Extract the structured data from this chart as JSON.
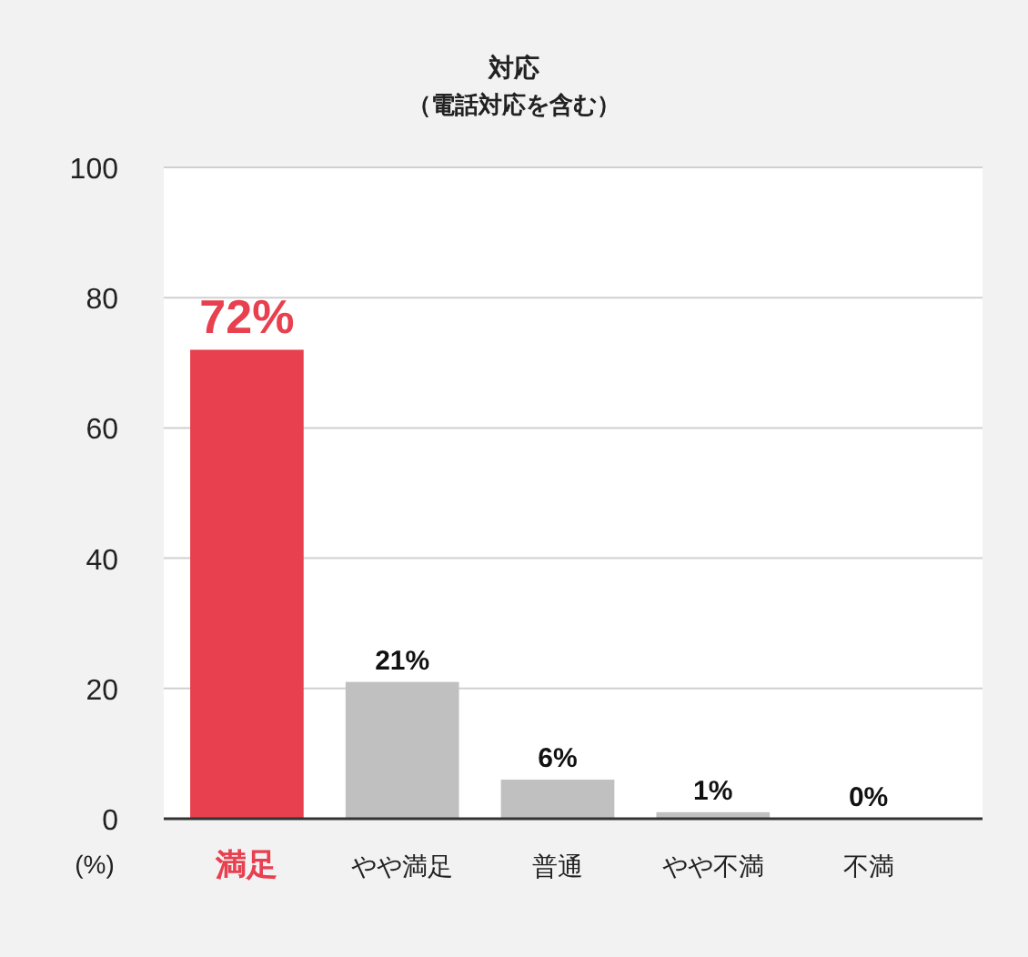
{
  "chart_data": {
    "type": "bar",
    "title": "対応",
    "subtitle": "（電話対応を含む）",
    "ylabel": "(%)",
    "categories": [
      "満足",
      "やや満足",
      "普通",
      "やや不満",
      "不満"
    ],
    "values": [
      72,
      21,
      6,
      1,
      0
    ],
    "colors": [
      "#e8404f",
      "#c0c0c0",
      "#c0c0c0",
      "#c0c0c0",
      "#c0c0c0"
    ],
    "value_labels": [
      "72%",
      "21%",
      "6%",
      "1%",
      "0%"
    ],
    "ylim": [
      0,
      100
    ],
    "yticks": [
      0,
      20,
      40,
      60,
      80,
      100
    ],
    "grid": "y"
  }
}
